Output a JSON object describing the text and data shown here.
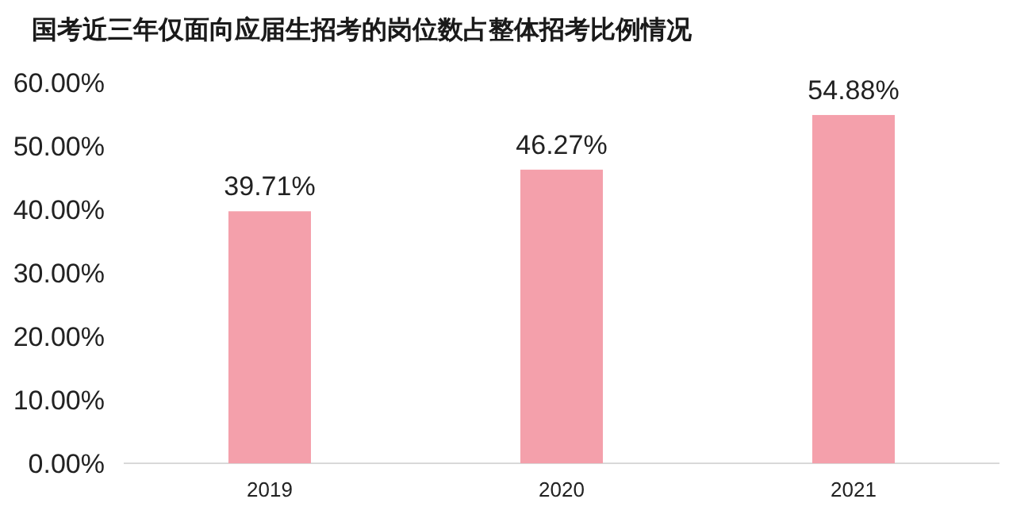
{
  "chart_data": {
    "type": "bar",
    "title": "国考近三年仅面向应届生招考的岗位数占整体招考比例情况",
    "categories": [
      "2019",
      "2020",
      "2021"
    ],
    "values": [
      39.71,
      46.27,
      54.88
    ],
    "value_labels": [
      "39.71%",
      "46.27%",
      "54.88%"
    ],
    "color": "#f4a0ab",
    "ylim": [
      0,
      60
    ],
    "yticks": [
      {
        "value": 0,
        "label": "0.00%"
      },
      {
        "value": 10,
        "label": "10.00%"
      },
      {
        "value": 20,
        "label": "20.00%"
      },
      {
        "value": 30,
        "label": "30.00%"
      },
      {
        "value": 40,
        "label": "40.00%"
      },
      {
        "value": 50,
        "label": "50.00%"
      },
      {
        "value": 60,
        "label": "60.00%"
      }
    ],
    "grid": false
  }
}
